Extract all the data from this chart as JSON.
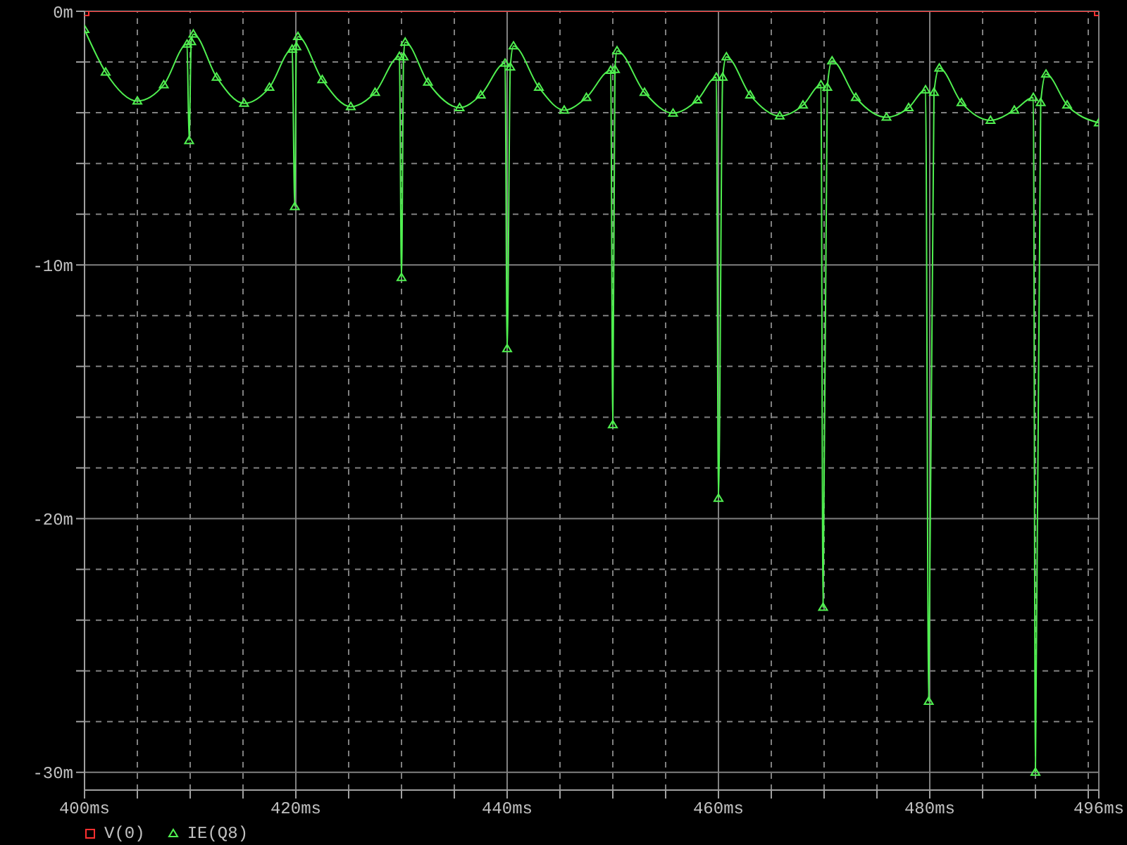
{
  "chart_data": {
    "type": "line",
    "xlim": [
      400,
      496
    ],
    "ylim": [
      -30.7,
      0
    ],
    "xticks": [
      {
        "value": 400,
        "label": "400ms"
      },
      {
        "value": 405,
        "label": null
      },
      {
        "value": 410,
        "label": null
      },
      {
        "value": 415,
        "label": null
      },
      {
        "value": 420,
        "label": "420ms"
      },
      {
        "value": 425,
        "label": null
      },
      {
        "value": 430,
        "label": null
      },
      {
        "value": 435,
        "label": null
      },
      {
        "value": 440,
        "label": "440ms"
      },
      {
        "value": 445,
        "label": null
      },
      {
        "value": 450,
        "label": null
      },
      {
        "value": 455,
        "label": null
      },
      {
        "value": 460,
        "label": "460ms"
      },
      {
        "value": 465,
        "label": null
      },
      {
        "value": 470,
        "label": null
      },
      {
        "value": 475,
        "label": null
      },
      {
        "value": 480,
        "label": "480ms"
      },
      {
        "value": 485,
        "label": null
      },
      {
        "value": 490,
        "label": null
      },
      {
        "value": 495,
        "label": null
      },
      {
        "value": 496,
        "label": "496ms"
      }
    ],
    "yticks": [
      {
        "value": 0,
        "label": "0m"
      },
      {
        "value": -2,
        "label": null
      },
      {
        "value": -4,
        "label": null
      },
      {
        "value": -6,
        "label": null
      },
      {
        "value": -8,
        "label": null
      },
      {
        "value": -10,
        "label": "-10m"
      },
      {
        "value": -12,
        "label": null
      },
      {
        "value": -14,
        "label": null
      },
      {
        "value": -16,
        "label": null
      },
      {
        "value": -18,
        "label": null
      },
      {
        "value": -20,
        "label": "-20m"
      },
      {
        "value": -22,
        "label": null
      },
      {
        "value": -24,
        "label": null
      },
      {
        "value": -26,
        "label": null
      },
      {
        "value": -28,
        "label": null
      },
      {
        "value": -30,
        "label": "-30m"
      }
    ],
    "grid": true,
    "legend": "bottom left",
    "line_style": "solid",
    "series": [
      {
        "name": "V(0)",
        "color": "#ff3030",
        "marker": "square",
        "x": [
          400,
          496
        ],
        "values": [
          0,
          0
        ]
      },
      {
        "name": "IE(Q8)",
        "color": "#50f050",
        "marker": "triangle",
        "x": [
          400,
          402,
          405,
          407.5,
          409.7,
          409.9,
          410.1,
          410.3,
          412.5,
          415.1,
          417.5,
          419.65,
          419.9,
          420.05,
          420.2,
          422.5,
          425.2,
          427.5,
          429.8,
          430.0,
          430.2,
          430.35,
          432.5,
          435.5,
          437.5,
          439.8,
          440.0,
          440.3,
          440.6,
          443,
          445.4,
          447.5,
          449.8,
          450.0,
          450.2,
          450.4,
          453,
          455.7,
          458,
          459.8,
          460.0,
          460.4,
          460.75,
          463,
          465.8,
          468,
          469.7,
          469.9,
          470.3,
          470.75,
          473,
          475.9,
          478,
          479.6,
          479.9,
          480.4,
          480.9,
          483,
          485.75,
          488,
          489.8,
          490.0,
          490.5,
          491.0,
          493,
          496
        ],
        "values": [
          -0.72,
          -2.4,
          -3.54,
          -2.9,
          -1.3,
          -5.1,
          -1.2,
          -0.9,
          -2.6,
          -3.63,
          -3.0,
          -1.5,
          -7.7,
          -1.4,
          -1.0,
          -2.7,
          -3.76,
          -3.2,
          -1.78,
          -10.5,
          -1.8,
          -1.22,
          -2.8,
          -3.8,
          -3.3,
          -2.05,
          -13.3,
          -2.2,
          -1.37,
          -3.0,
          -3.9,
          -3.4,
          -2.33,
          -16.3,
          -2.3,
          -1.56,
          -3.2,
          -4.02,
          -3.5,
          -2.6,
          -19.2,
          -2.6,
          -1.8,
          -3.3,
          -4.13,
          -3.7,
          -2.9,
          -23.5,
          -3.0,
          -1.96,
          -3.4,
          -4.18,
          -3.8,
          -3.1,
          -27.2,
          -3.2,
          -2.24,
          -3.6,
          -4.3,
          -3.9,
          -3.4,
          -30,
          -3.6,
          -2.48,
          -3.7,
          -4.4
        ]
      }
    ]
  }
}
